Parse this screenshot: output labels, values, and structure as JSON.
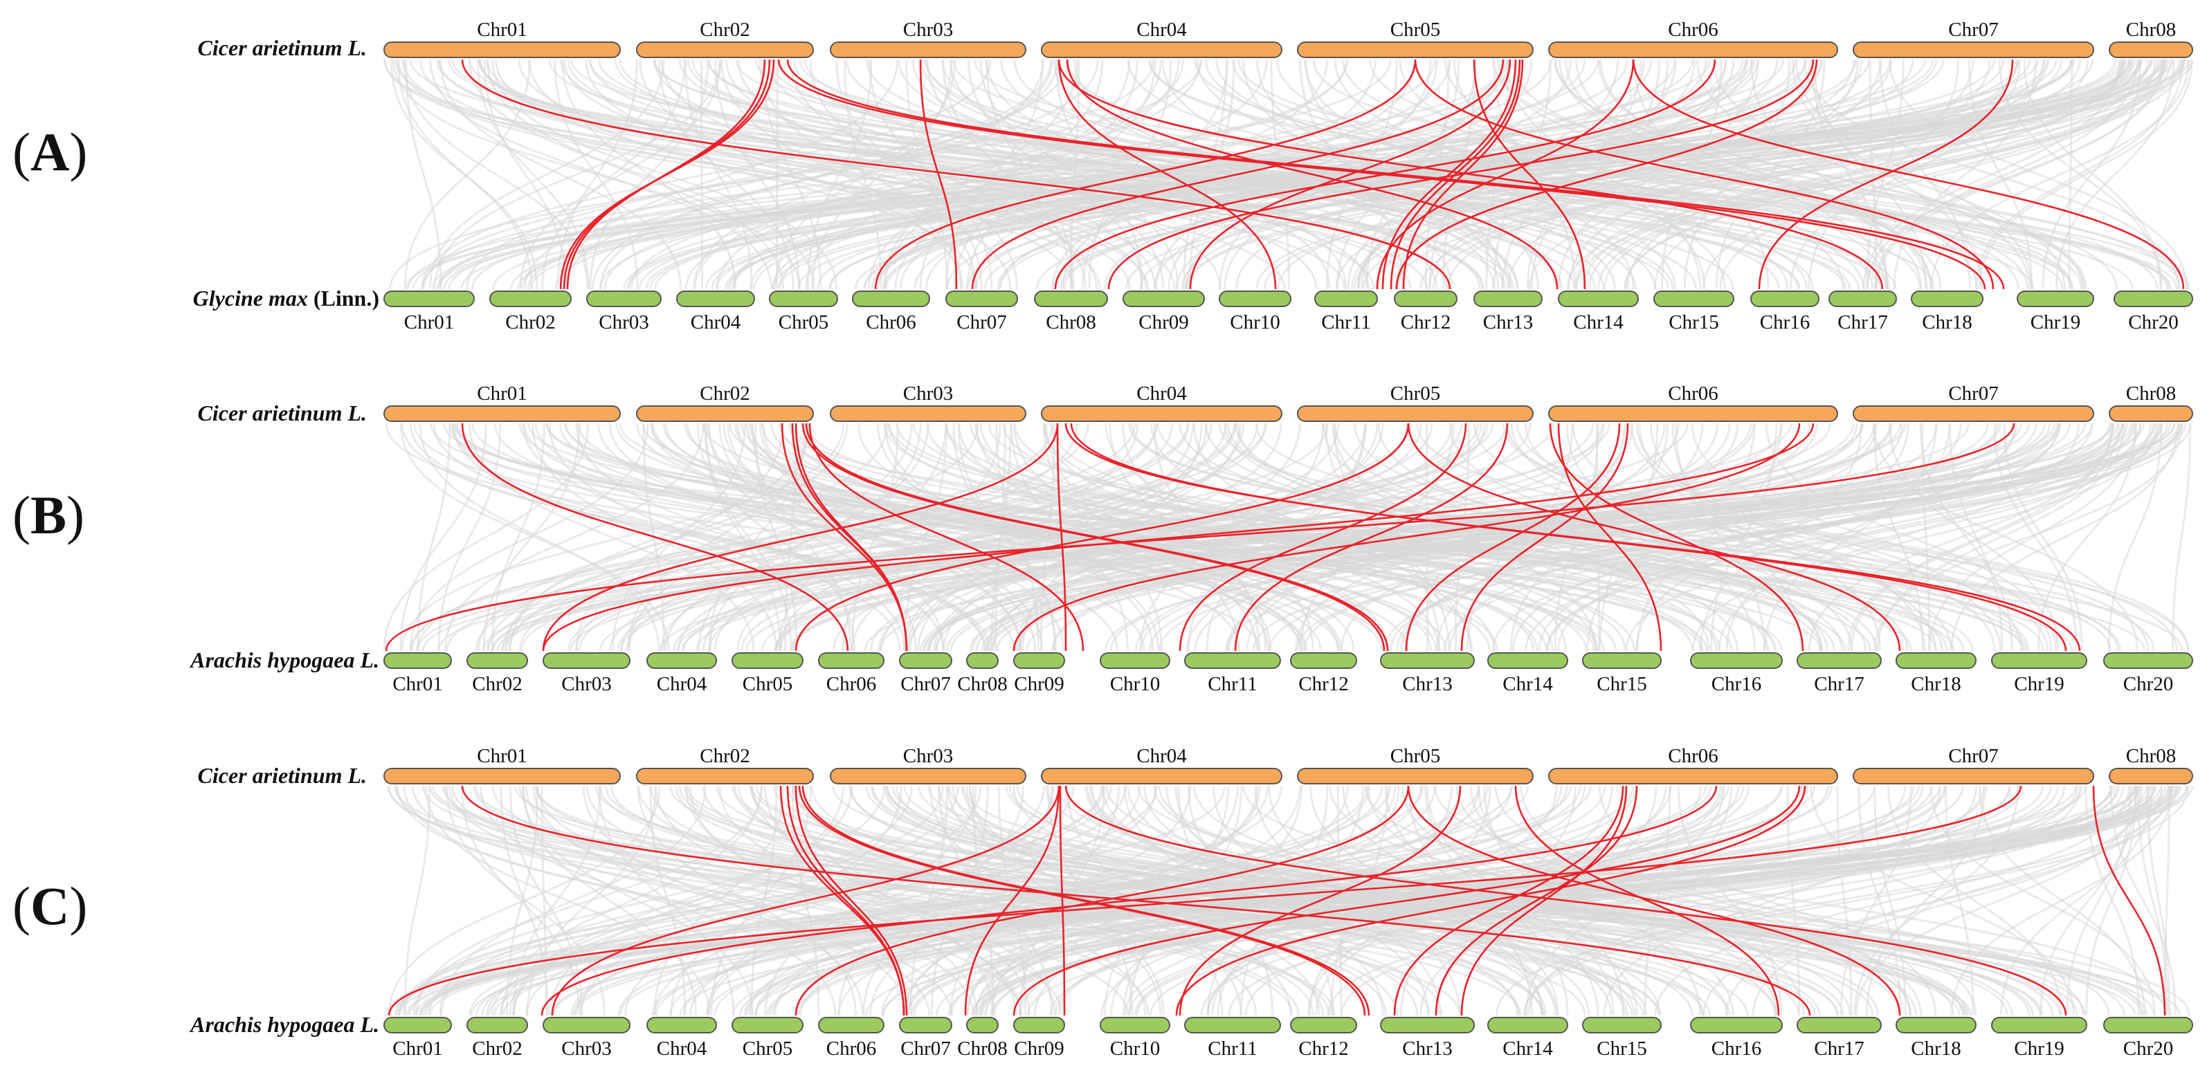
{
  "colors": {
    "top_chr_fill": "#F5A85A",
    "bottom_chr_fill": "#9BCB5F",
    "chr_stroke": "#555555",
    "background_link": "#D9D9D9",
    "highlight_link": "#E8232A"
  },
  "panels": [
    {
      "label_open": "(",
      "label_letter": "A",
      "label_close": ")",
      "top_species": "Cicer arietinum L.",
      "bottom_species_italic": "Glycine max",
      "bottom_species_extra": " (Linn.)",
      "top_chromosomes": [
        "Chr01",
        "Chr02",
        "Chr03",
        "Chr04",
        "Chr05",
        "Chr06",
        "Chr07",
        "Chr08"
      ],
      "bottom_chromosomes": [
        "Chr01",
        "Chr02",
        "Chr03",
        "Chr04",
        "Chr05",
        "Chr06",
        "Chr07",
        "Chr08",
        "Chr09",
        "Chr10",
        "Chr11",
        "Chr12",
        "Chr13",
        "Chr14",
        "Chr15",
        "Chr16",
        "Chr17",
        "Chr18",
        "Chr19",
        "Chr20"
      ]
    },
    {
      "label_open": "(",
      "label_letter": "B",
      "label_close": ")",
      "top_species": "Cicer arietinum L.",
      "bottom_species_italic": "Arachis hypogaea L.",
      "bottom_species_extra": "",
      "top_chromosomes": [
        "Chr01",
        "Chr02",
        "Chr03",
        "Chr04",
        "Chr05",
        "Chr06",
        "Chr07",
        "Chr08"
      ],
      "bottom_chromosomes": [
        "Chr01",
        "Chr02",
        "Chr03",
        "Chr04",
        "Chr05",
        "Chr06",
        "Chr07",
        "Chr08",
        "Chr09",
        "Chr10",
        "Chr11",
        "Chr12",
        "Chr13",
        "Chr14",
        "Chr15",
        "Chr16",
        "Chr17",
        "Chr18",
        "Chr19",
        "Chr20"
      ]
    },
    {
      "label_open": "(",
      "label_letter": "C",
      "label_close": ")",
      "top_species": "Cicer arietinum L.",
      "bottom_species_italic": "Arachis hypogaea L.",
      "bottom_species_extra": "",
      "top_chromosomes": [
        "Chr01",
        "Chr02",
        "Chr03",
        "Chr04",
        "Chr05",
        "Chr06",
        "Chr07",
        "Chr08"
      ],
      "bottom_chromosomes": [
        "Chr01",
        "Chr02",
        "Chr03",
        "Chr04",
        "Chr05",
        "Chr06",
        "Chr07",
        "Chr08",
        "Chr09",
        "Chr10",
        "Chr11",
        "Chr12",
        "Chr13",
        "Chr14",
        "Chr15",
        "Chr16",
        "Chr17",
        "Chr18",
        "Chr19",
        "Chr20"
      ]
    }
  ]
}
